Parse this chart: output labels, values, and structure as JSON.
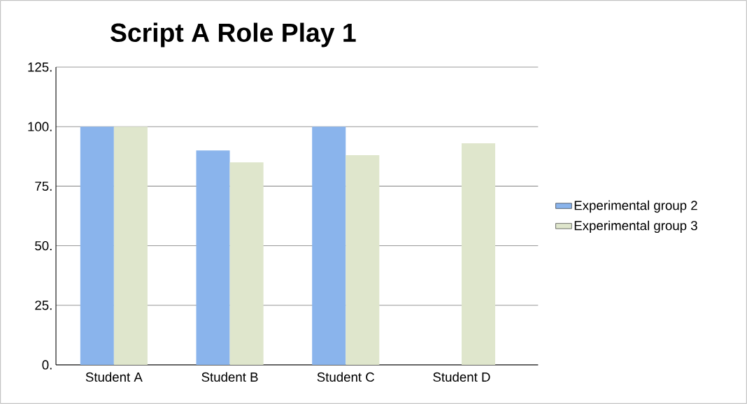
{
  "chart_data": {
    "type": "bar",
    "title": "Script A Role Play 1",
    "categories": [
      "Student A",
      "Student B",
      "Student C",
      "Student D"
    ],
    "series": [
      {
        "name": "Experimental group 2",
        "color": "#8ab4ec",
        "values": [
          100,
          90,
          100,
          null
        ]
      },
      {
        "name": "Experimental group 3",
        "color": "#dfe6cc",
        "values": [
          100,
          85,
          88,
          93
        ]
      }
    ],
    "ylim": [
      0,
      125
    ],
    "yticks": [
      {
        "value": 0,
        "label": "0."
      },
      {
        "value": 25,
        "label": "25."
      },
      {
        "value": 50,
        "label": "50."
      },
      {
        "value": 75,
        "label": "75."
      },
      {
        "value": 100,
        "label": "100."
      },
      {
        "value": 125,
        "label": "125."
      }
    ],
    "grid": "y",
    "legend": "right"
  }
}
